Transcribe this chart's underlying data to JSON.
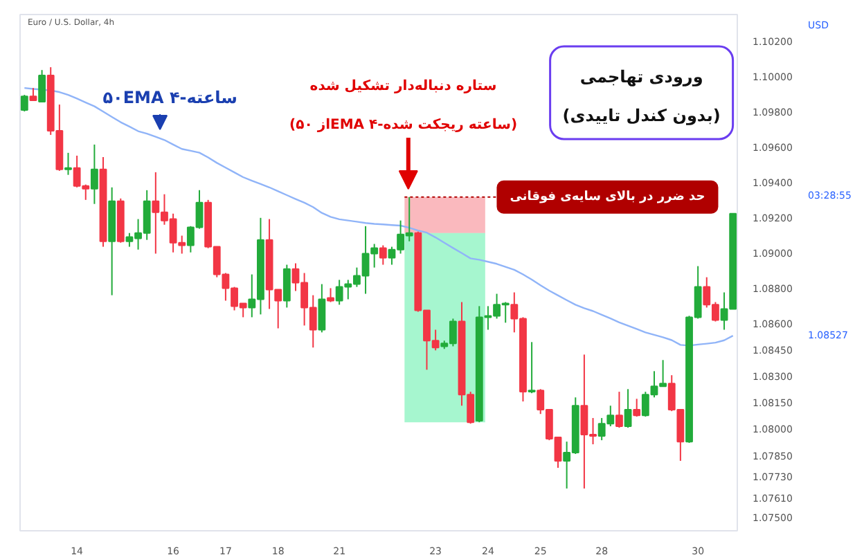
{
  "chart_data": {
    "type": "candlestick",
    "title": "Euro / U.S. Dollar, 4h",
    "categories": [
      null,
      null,
      null,
      null,
      null,
      null,
      "14",
      null,
      null,
      null,
      null,
      null,
      null,
      null,
      null,
      null,
      null,
      "16",
      null,
      null,
      null,
      null,
      null,
      "17",
      null,
      null,
      null,
      null,
      null,
      "18",
      null,
      null,
      null,
      null,
      null,
      null,
      "21",
      null,
      null,
      null,
      null,
      null,
      null,
      null,
      null,
      null,
      null,
      "23",
      null,
      null,
      null,
      null,
      null,
      "24",
      null,
      null,
      null,
      null,
      null,
      "25",
      null,
      null,
      null,
      null,
      null,
      null,
      "28",
      null,
      null,
      null,
      null,
      null,
      null,
      null,
      null,
      null,
      null,
      "30",
      null,
      null,
      null,
      null
    ],
    "ohlc": [
      [
        1.09808,
        1.09894,
        1.098,
        1.09886
      ],
      [
        1.09886,
        1.09933,
        1.09863,
        1.09863
      ],
      [
        1.09855,
        1.10035,
        1.09855,
        1.10004
      ],
      [
        1.10004,
        1.10051,
        1.09667,
        1.0969
      ],
      [
        1.0969,
        1.09839,
        1.09463,
        1.09471
      ],
      [
        1.09471,
        1.09565,
        1.0944,
        1.09479
      ],
      [
        1.09479,
        1.09549,
        1.09369,
        1.09377
      ],
      [
        1.09377,
        1.09385,
        1.09298,
        1.09361
      ],
      [
        1.09361,
        1.09612,
        1.09275,
        1.09471
      ],
      [
        1.09471,
        1.09541,
        1.09032,
        1.09063
      ],
      [
        1.09063,
        1.09369,
        1.08757,
        1.09291
      ],
      [
        1.09291,
        1.09306,
        1.09055,
        1.09063
      ],
      [
        1.09063,
        1.0911,
        1.09032,
        1.09087
      ],
      [
        1.09079,
        1.09189,
        1.09016,
        1.0911
      ],
      [
        1.0911,
        1.09353,
        1.09071,
        1.09291
      ],
      [
        1.09291,
        1.09455,
        1.08993,
        1.09228
      ],
      [
        1.09228,
        1.0933,
        1.09157,
        1.09181
      ],
      [
        1.09189,
        1.0922,
        1.09,
        1.09055
      ],
      [
        1.09055,
        1.09095,
        1.08993,
        1.0904
      ],
      [
        1.0904,
        1.09149,
        1.09,
        1.09142
      ],
      [
        1.09142,
        1.09353,
        1.09134,
        1.09283
      ],
      [
        1.09283,
        1.09298,
        1.09024,
        1.09032
      ],
      [
        1.09032,
        1.09032,
        1.08859,
        1.08875
      ],
      [
        1.08875,
        1.08883,
        1.08726,
        1.08797
      ],
      [
        1.08797,
        1.08804,
        1.08671,
        1.08695
      ],
      [
        1.0871,
        1.0871,
        1.08632,
        1.08687
      ],
      [
        1.08687,
        1.08875,
        1.08632,
        1.08734
      ],
      [
        1.08734,
        1.09196,
        1.08648,
        1.09071
      ],
      [
        1.09071,
        1.09189,
        1.08679,
        1.08789
      ],
      [
        1.08789,
        1.08789,
        1.08569,
        1.08726
      ],
      [
        1.08726,
        1.0893,
        1.08687,
        1.08906
      ],
      [
        1.08906,
        1.08938,
        1.08781,
        1.08828
      ],
      [
        1.08828,
        1.08883,
        1.08585,
        1.08687
      ],
      [
        1.08687,
        1.08757,
        1.0846,
        1.08561
      ],
      [
        1.08561,
        1.0882,
        1.08546,
        1.08734
      ],
      [
        1.08742,
        1.08797,
        1.08718,
        1.08726
      ],
      [
        1.08726,
        1.08844,
        1.08703,
        1.08804
      ],
      [
        1.08804,
        1.08844,
        1.08734,
        1.0882
      ],
      [
        1.0882,
        1.08914,
        1.08804,
        1.08867
      ],
      [
        1.08867,
        1.09149,
        1.08765,
        1.08993
      ],
      [
        1.08993,
        1.09048,
        1.08914,
        1.09024
      ],
      [
        1.09024,
        1.0904,
        1.0893,
        1.08969
      ],
      [
        1.08969,
        1.09032,
        1.0893,
        1.09016
      ],
      [
        1.09016,
        1.09181,
        1.08993,
        1.09102
      ],
      [
        1.09095,
        1.09314,
        1.09063,
        1.0911
      ],
      [
        1.0911,
        1.09118,
        1.08663,
        1.08671
      ],
      [
        1.08671,
        1.08671,
        1.08334,
        1.08499
      ],
      [
        1.08499,
        1.08561,
        1.08444,
        1.0846
      ],
      [
        1.08467,
        1.08499,
        1.08452,
        1.08483
      ],
      [
        1.08483,
        1.08624,
        1.08467,
        1.08608
      ],
      [
        1.08608,
        1.08718,
        1.0813,
        1.08193
      ],
      [
        1.08193,
        1.08209,
        1.08028,
        1.08036
      ],
      [
        1.08044,
        1.08695,
        1.08036,
        1.08632
      ],
      [
        1.08632,
        1.08695,
        1.08561,
        1.0864
      ],
      [
        1.0864,
        1.08765,
        1.08624,
        1.08703
      ],
      [
        1.08703,
        1.08718,
        1.08601,
        1.0871
      ],
      [
        1.08703,
        1.08773,
        1.08546,
        1.08624
      ],
      [
        1.08624,
        1.08632,
        1.08154,
        1.08209
      ],
      [
        1.08209,
        1.08491,
        1.08201,
        1.08216
      ],
      [
        1.08216,
        1.08224,
        1.08083,
        1.08107
      ],
      [
        1.08107,
        1.08107,
        1.07934,
        1.07942
      ],
      [
        1.0795,
        1.0795,
        1.07777,
        1.07817
      ],
      [
        1.07817,
        1.07926,
        1.0766,
        1.07864
      ],
      [
        1.07864,
        1.08177,
        1.07856,
        1.0813
      ],
      [
        1.0813,
        1.0842,
        1.0766,
        1.07966
      ],
      [
        1.07966,
        1.0806,
        1.07911,
        1.07958
      ],
      [
        1.07958,
        1.0806,
        1.07934,
        1.08028
      ],
      [
        1.08028,
        1.0813,
        1.08013,
        1.08075
      ],
      [
        1.08075,
        1.08209,
        1.08005,
        1.08013
      ],
      [
        1.08013,
        1.08224,
        1.08005,
        1.08107
      ],
      [
        1.08107,
        1.08169,
        1.08068,
        1.08075
      ],
      [
        1.08075,
        1.08209,
        1.08068,
        1.08193
      ],
      [
        1.08193,
        1.08326,
        1.08177,
        1.0824
      ],
      [
        1.0824,
        1.08389,
        1.0824,
        1.08256
      ],
      [
        1.08256,
        1.08303,
        1.08099,
        1.08107
      ],
      [
        1.08107,
        1.08107,
        1.07817,
        1.07926
      ],
      [
        1.07926,
        1.0864,
        1.07919,
        1.08632
      ],
      [
        1.08632,
        1.08922,
        1.08624,
        1.08804
      ],
      [
        1.08804,
        1.08859,
        1.08687,
        1.08703
      ],
      [
        1.08703,
        1.08718,
        1.08608,
        1.08616
      ],
      [
        1.08616,
        1.08773,
        1.08561,
        1.08679
      ],
      [
        1.08679,
        1.0922,
        1.08679,
        1.0922
      ]
    ],
    "colors": [
      "#22ab3a",
      "#f23645",
      "#22ab3a",
      "#f23645",
      "#f23645",
      "#22ab3a",
      "#f23645",
      "#f23645",
      "#22ab3a",
      "#f23645",
      "#22ab3a",
      "#f23645",
      "#22ab3a",
      "#22ab3a",
      "#22ab3a",
      "#f23645",
      "#f23645",
      "#f23645",
      "#f23645",
      "#22ab3a",
      "#22ab3a",
      "#f23645",
      "#f23645",
      "#f23645",
      "#f23645",
      "#f23645",
      "#22ab3a",
      "#22ab3a",
      "#f23645",
      "#f23645",
      "#22ab3a",
      "#f23645",
      "#f23645",
      "#f23645",
      "#22ab3a",
      "#f23645",
      "#22ab3a",
      "#22ab3a",
      "#22ab3a",
      "#22ab3a",
      "#22ab3a",
      "#f23645",
      "#22ab3a",
      "#22ab3a",
      "#22ab3a",
      "#f23645",
      "#f23645",
      "#f23645",
      "#22ab3a",
      "#22ab3a",
      "#f23645",
      "#f23645",
      "#22ab3a",
      "#22ab3a",
      "#22ab3a",
      "#22ab3a",
      "#f23645",
      "#f23645",
      "#22ab3a",
      "#f23645",
      "#f23645",
      "#f23645",
      "#22ab3a",
      "#22ab3a",
      "#f23645",
      "#f23645",
      "#22ab3a",
      "#22ab3a",
      "#f23645",
      "#22ab3a",
      "#f23645",
      "#22ab3a",
      "#22ab3a",
      "#22ab3a",
      "#f23645",
      "#f23645",
      "#22ab3a",
      "#22ab3a",
      "#f23645",
      "#f23645",
      "#22ab3a",
      "#22ab3a"
    ],
    "series": [
      {
        "type": "line",
        "color": "#90b4f8",
        "values": [
          1.09933,
          1.09928,
          1.09924,
          1.09919,
          1.0991,
          1.09894,
          1.09873,
          1.09851,
          1.09829,
          1.09799,
          1.09769,
          1.09739,
          1.09714,
          1.09688,
          1.09674,
          1.09656,
          1.09638,
          1.09612,
          1.09587,
          1.09577,
          1.09566,
          1.09539,
          1.09508,
          1.09481,
          1.09454,
          1.09427,
          1.09407,
          1.09388,
          1.09369,
          1.09347,
          1.09325,
          1.09303,
          1.09282,
          1.09257,
          1.09224,
          1.09202,
          1.09188,
          1.09181,
          1.09174,
          1.09167,
          1.09162,
          1.09159,
          1.09155,
          1.09152,
          1.0914,
          1.09124,
          1.09112,
          1.09085,
          1.09055,
          1.09025,
          1.08996,
          1.08966,
          1.08958,
          1.08947,
          1.08935,
          1.08918,
          1.08901,
          1.08875,
          1.08846,
          1.08813,
          1.08783,
          1.08756,
          1.08729,
          1.08703,
          1.08683,
          1.08667,
          1.08646,
          1.08625,
          1.08603,
          1.08584,
          1.08565,
          1.08546,
          1.08532,
          1.08518,
          1.08502,
          1.08475,
          1.08471,
          1.08477,
          1.08482,
          1.08488,
          1.08501,
          1.08527
        ]
      }
    ],
    "ylim": [
      1.0742,
      1.1035
    ],
    "yticks": [
      {
        "value": 1.102,
        "label": "1.10200"
      },
      {
        "value": 1.1,
        "label": "1.10000"
      },
      {
        "value": 1.098,
        "label": "1.09800"
      },
      {
        "value": 1.096,
        "label": "1.09600"
      },
      {
        "value": 1.094,
        "label": "1.09400"
      },
      {
        "value": 1.092,
        "label": "1.09200"
      },
      {
        "value": 1.09,
        "label": "1.09000"
      },
      {
        "value": 1.088,
        "label": "1.08800"
      },
      {
        "value": 1.086,
        "label": "1.08600"
      },
      {
        "value": 1.0845,
        "label": "1.08450"
      },
      {
        "value": 1.083,
        "label": "1.08300"
      },
      {
        "value": 1.0815,
        "label": "1.08150"
      },
      {
        "value": 1.08,
        "label": "1.08000"
      },
      {
        "value": 1.0785,
        "label": "1.07850"
      },
      {
        "value": 1.0773,
        "label": "1.07730"
      },
      {
        "value": 1.0761,
        "label": "1.07610"
      },
      {
        "value": 1.075,
        "label": "1.07500"
      }
    ],
    "bands": [
      {
        "axis": "y",
        "from": 1.0911,
        "to": 1.09314,
        "color": "#f23645"
      },
      {
        "axis": "y",
        "from": 1.08036,
        "to": 1.0911,
        "color": "#00e676"
      }
    ],
    "ref_lines": [
      {
        "axis": "y",
        "value": 1.09314,
        "label": "حد ضرر در بالای سایه‌ی فوقانی",
        "color": "#b00000",
        "line_style": "dotted"
      }
    ],
    "annotations": [
      "۵۰EMA ۴-ساعته",
      "(از ۵۰EMA ۴-ساعته ریجکت شده)",
      "ستاره دنباله‌دار تشکیل شده",
      "ورودی تهاجمی",
      "(بدون کندل تاییدی)",
      "USD",
      "1.08527",
      "03:28:55"
    ]
  }
}
